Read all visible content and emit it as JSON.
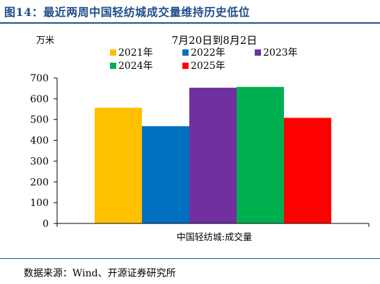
{
  "figure": {
    "title": "图14：最近两周中国轻纺城成交量维持历史低位",
    "source": "数据来源：Wind、开源证券研究所"
  },
  "chart_data": {
    "type": "bar",
    "title": "7月20日到8月2日",
    "ylabel": "万米",
    "xlabel": "中国轻纺城:成交量",
    "ylim": [
      0,
      700
    ],
    "yticks": [
      0,
      100,
      200,
      300,
      400,
      500,
      600,
      700
    ],
    "grid": false,
    "legend_position": "top",
    "categories": [
      "中国轻纺城:成交量"
    ],
    "series": [
      {
        "name": "2021年",
        "values": [
          557
        ],
        "color": "#FFC000"
      },
      {
        "name": "2022年",
        "values": [
          468
        ],
        "color": "#0070C0"
      },
      {
        "name": "2023年",
        "values": [
          653
        ],
        "color": "#7030A0"
      },
      {
        "name": "2024年",
        "values": [
          657
        ],
        "color": "#00B050"
      },
      {
        "name": "2025年",
        "values": [
          508
        ],
        "color": "#FF0000"
      }
    ]
  }
}
